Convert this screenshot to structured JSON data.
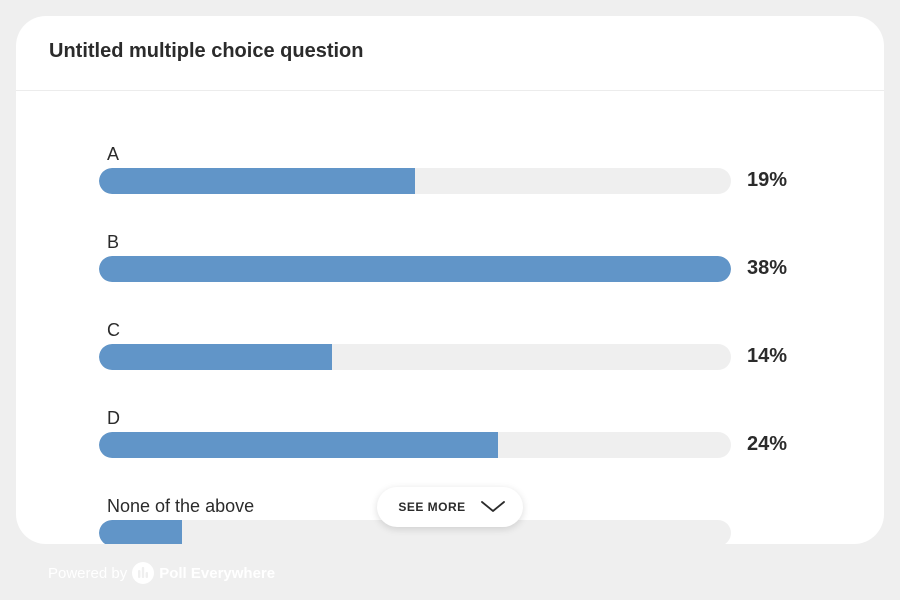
{
  "question": {
    "title": "Untitled multiple choice question"
  },
  "chart_data": {
    "type": "bar",
    "orientation": "horizontal",
    "categories": [
      "A",
      "B",
      "C",
      "D",
      "None of the above"
    ],
    "values": [
      19,
      38,
      14,
      24,
      5
    ],
    "value_labels": [
      "19%",
      "38%",
      "14%",
      "24%",
      ""
    ],
    "unit": "%",
    "max": 38,
    "grid": false,
    "bar_color": "#6195c8",
    "track_color": "#efefef"
  },
  "controls": {
    "see_more_label": "SEE MORE",
    "see_more_icon": "chevron-down-icon"
  },
  "footer": {
    "prefix": "Powered by",
    "brand": "Poll Everywhere",
    "logo_icon": "poll-everywhere-logo-icon"
  }
}
